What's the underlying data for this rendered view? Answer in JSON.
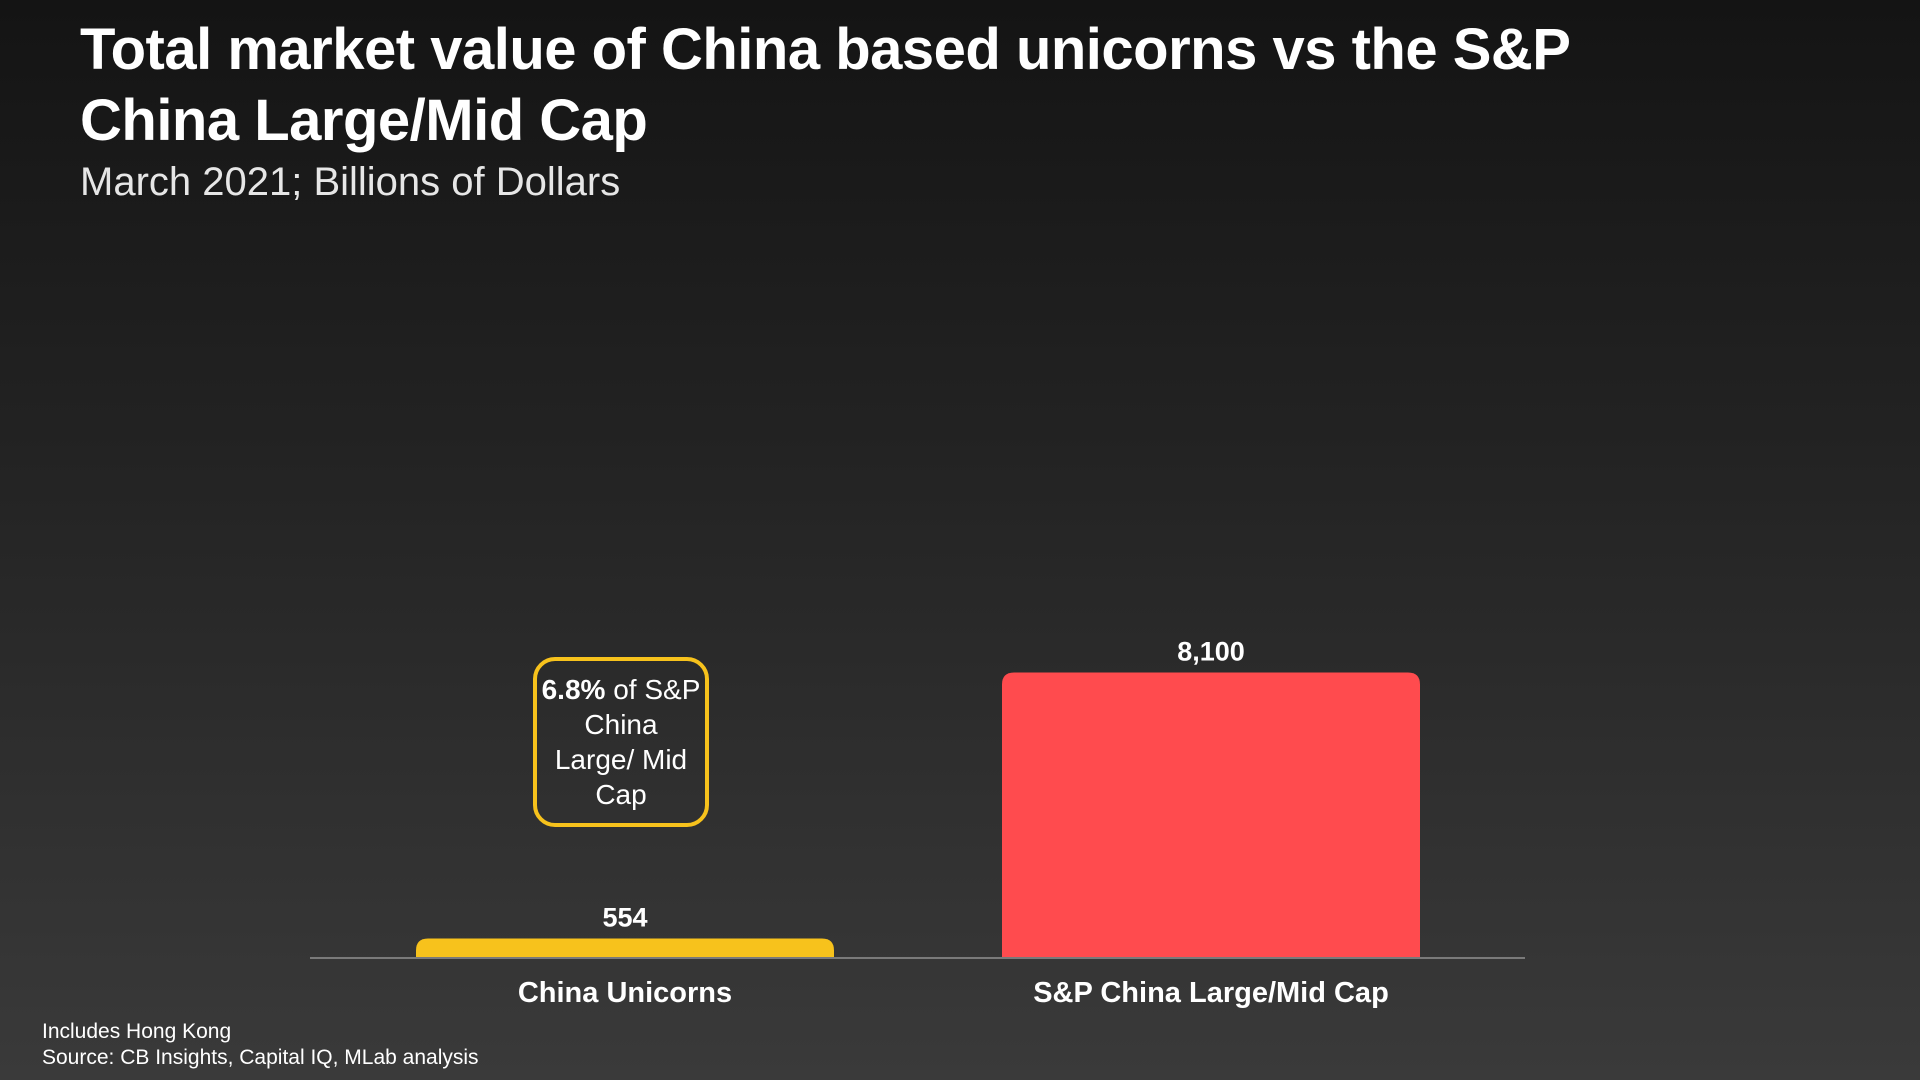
{
  "header": {
    "title": "Total market value of China based unicorns vs the S&P China Large/Mid Cap",
    "subtitle": "March 2021; Billions of Dollars"
  },
  "callout": {
    "highlight": "6.8%",
    "text": " of S&P China Large/ Mid Cap"
  },
  "footer": {
    "note": "Includes Hong Kong",
    "source": "Source: CB Insights, Capital IQ, MLab analysis"
  },
  "colors": {
    "unicorns_bar": "#f7c21c",
    "sp_bar": "#ff4b4e",
    "axis": "#7a7a7a",
    "callout_border": "#f7c21c"
  },
  "chart_data": {
    "type": "bar",
    "categories": [
      "China Unicorns",
      "S&P China Large/Mid Cap"
    ],
    "values": [
      554,
      8100
    ],
    "value_labels": [
      "554",
      "8,100"
    ],
    "title": "Total market value of China based unicorns vs the S&P China Large/Mid Cap",
    "subtitle": "March 2021; Billions of Dollars",
    "xlabel": "",
    "ylabel": "",
    "ylim": [
      0,
      20000
    ],
    "grid": false,
    "legend": "none"
  }
}
